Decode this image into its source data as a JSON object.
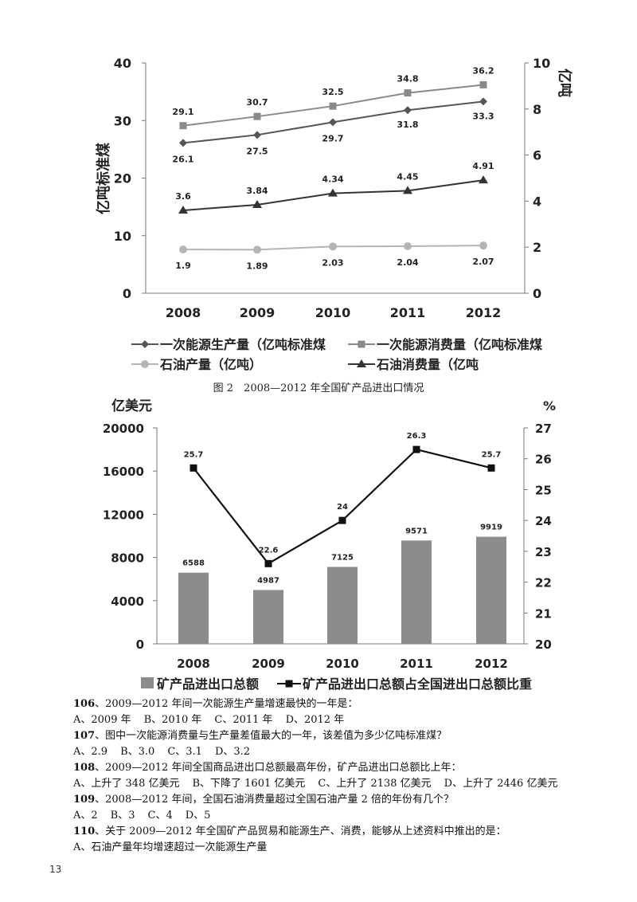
{
  "chart_data": [
    {
      "type": "line",
      "categories": [
        "2008",
        "2009",
        "2010",
        "2011",
        "2012"
      ],
      "ylabel": "亿吨标准煤",
      "ylabel_right": "亿吨",
      "ylim": [
        0,
        40
      ],
      "ylim_right": [
        0,
        10
      ],
      "yticks": [
        "0",
        "10",
        "20",
        "30",
        "40"
      ],
      "yticks_right": [
        "0",
        "2",
        "4",
        "6",
        "8",
        "10"
      ],
      "series": [
        {
          "name": "一次能源生产量（亿吨标准煤",
          "axis": "left",
          "marker": "diamond",
          "color": "#555555",
          "values": [
            26.1,
            27.5,
            29.7,
            31.8,
            33.3
          ],
          "labels": [
            "26.1",
            "27.5",
            "29.7",
            "31.8",
            "33.3"
          ]
        },
        {
          "name": "一次能源消费量（亿吨标准煤",
          "axis": "left",
          "marker": "square",
          "color": "#8a8a8a",
          "values": [
            29.1,
            30.7,
            32.5,
            34.8,
            36.2
          ],
          "labels": [
            "29.1",
            "30.7",
            "32.5",
            "34.8",
            "36.2"
          ]
        },
        {
          "name": "石油产量（亿吨）",
          "axis": "right",
          "marker": "circle",
          "color": "#b5b5b5",
          "values": [
            1.9,
            1.89,
            2.03,
            2.04,
            2.07
          ],
          "labels": [
            "1.9",
            "1.89",
            "2.03",
            "2.04",
            "2.07"
          ]
        },
        {
          "name": "石油消费量（亿吨",
          "axis": "right",
          "marker": "triangle",
          "color": "#333333",
          "values": [
            3.6,
            3.84,
            4.34,
            4.45,
            4.91
          ],
          "labels": [
            "3.6",
            "3.84",
            "4.34",
            "4.45",
            "4.91"
          ]
        }
      ],
      "legend_position": "bottom"
    },
    {
      "type": "bar",
      "title": "图 2　2008—2012 年全国矿产品进出口情况",
      "categories": [
        "2008",
        "2009",
        "2010",
        "2011",
        "2012"
      ],
      "ylabel": "亿美元",
      "ylabel_right": "%",
      "ylim": [
        0,
        20000
      ],
      "ylim_right": [
        20,
        27
      ],
      "yticks": [
        "0",
        "4000",
        "8000",
        "12000",
        "16000",
        "20000"
      ],
      "yticks_right": [
        "20",
        "21",
        "22",
        "23",
        "24",
        "25",
        "26",
        "27"
      ],
      "series": [
        {
          "name": "矿产品进出口总额",
          "type": "bar",
          "axis": "left",
          "color": "#8c8c8c",
          "values": [
            6588,
            4987,
            7125,
            9571,
            9919
          ],
          "labels": [
            "6588",
            "4987",
            "7125",
            "9571",
            "9919"
          ]
        },
        {
          "name": "矿产品进出口总额占全国进出口总额比重",
          "type": "line",
          "axis": "right",
          "marker": "square",
          "color": "#111111",
          "values": [
            25.7,
            22.6,
            24,
            26.3,
            25.7
          ],
          "labels": [
            "25.7",
            "22.6",
            "24",
            "26.3",
            "25.7"
          ]
        }
      ],
      "legend_position": "bottom"
    }
  ],
  "questions": [
    {
      "num": "106",
      "text": "、2009—2012 年间一次能源生产量增速最快的一年是：",
      "options": [
        "A、2009 年",
        "B、2010 年",
        "C、2011 年",
        "D、2012 年"
      ]
    },
    {
      "num": "107",
      "text": "、图中一次能源消费量与生产量差值最大的一年，该差值为多少亿吨标准煤？",
      "options": [
        "A、2.9",
        "B、3.0",
        "C、3.1",
        "D、3.2"
      ]
    },
    {
      "num": "108",
      "text": "、2009—2012 年间全国商品进出口总额最高年份，矿产品进出口总额比上年：",
      "options": [
        "A、上升了 348 亿美元",
        "B、下降了 1601 亿美元",
        "C、上升了 2138 亿美元",
        "D、上升了 2446 亿美元"
      ]
    },
    {
      "num": "109",
      "text": "、2008—2012 年间，全国石油消费量超过全国石油产量 2 倍的年份有几个？",
      "options": [
        "A、2",
        "B、3",
        "C、4",
        "D、5"
      ]
    },
    {
      "num": "110",
      "text": "、关于 2009—2012 年全国矿产品贸易和能源生产、消费，能够从上述资料中推出的是：",
      "options": [
        "A、石油产量年均增速超过一次能源生产量"
      ]
    }
  ],
  "page_number": "13"
}
